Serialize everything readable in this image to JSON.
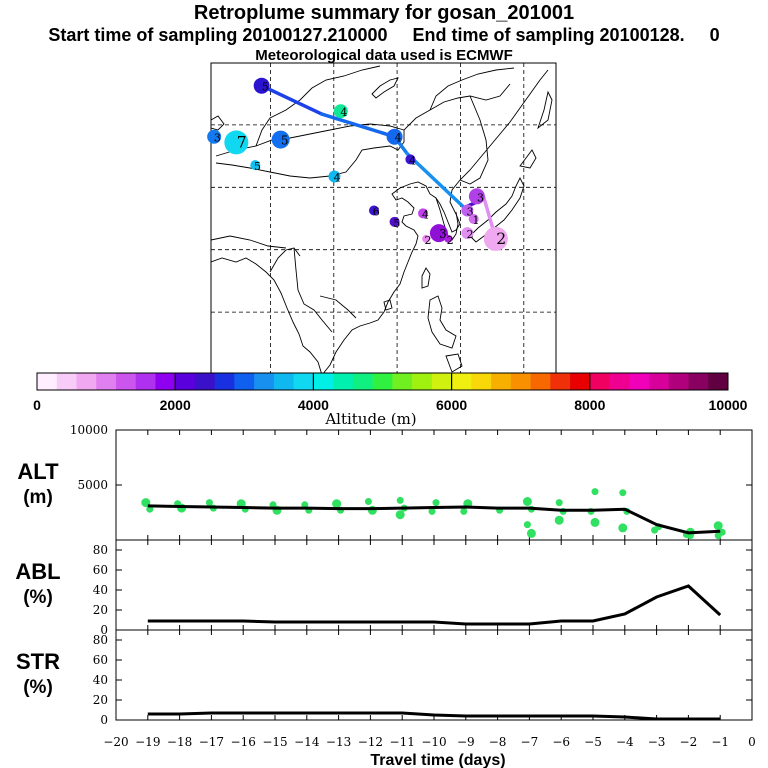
{
  "header": {
    "title": "Retroplume summary for gosan_201001",
    "sampling_line": "Start time of sampling 20100127.210000     End time of sampling 20100128.     0",
    "met_line": "Meteorological data used is ECMWF"
  },
  "colorbar": {
    "label": "Altitude  (m)",
    "ticks": [
      "0",
      "2000",
      "4000",
      "6000",
      "8000",
      "10000"
    ],
    "colors": [
      "#ffeeff",
      "#f8ccf8",
      "#f0a8f0",
      "#e080f0",
      "#cc55ee",
      "#b030f0",
      "#9000f0",
      "#5a00dd",
      "#3a10c8",
      "#1830e0",
      "#1060f0",
      "#1890f0",
      "#10b8f0",
      "#10d8f0",
      "#00f0e8",
      "#00f0b0",
      "#10f080",
      "#30f040",
      "#70f020",
      "#a0f010",
      "#d0f010",
      "#f0f010",
      "#f8d808",
      "#f8b000",
      "#f89000",
      "#f86800",
      "#f03008",
      "#e80000",
      "#f00060",
      "#f00090",
      "#f000b8",
      "#d8009a",
      "#b0007c",
      "#880060",
      "#600040"
    ]
  },
  "map": {
    "labels": [
      {
        "text": "5",
        "color": "#2a14d0",
        "size": 8,
        "lon": 56,
        "lat": 53
      },
      {
        "text": "4",
        "color": "#10e898",
        "size": 7,
        "lon": 81,
        "lat": 48.5
      },
      {
        "text": "3",
        "color": "#1478ee",
        "size": 7,
        "lon": 41,
        "lat": 44
      },
      {
        "text": "7",
        "color": "#10d8f0",
        "size": 12,
        "lon": 48,
        "lat": 43
      },
      {
        "text": "5",
        "color": "#1470ee",
        "size": 9,
        "lon": 62,
        "lat": 43.5
      },
      {
        "text": "4",
        "color": "#1468ee",
        "size": 8,
        "lon": 98,
        "lat": 44
      },
      {
        "text": "5",
        "color": "#10c0f0",
        "size": 5,
        "lon": 54,
        "lat": 39
      },
      {
        "text": "4",
        "color": "#10b8f0",
        "size": 6,
        "lon": 79,
        "lat": 37
      },
      {
        "text": "4",
        "color": "#3a14d0",
        "size": 5,
        "lon": 103,
        "lat": 40
      },
      {
        "text": "6",
        "color": "#3a14d0",
        "size": 5,
        "lon": 91.5,
        "lat": 31
      },
      {
        "text": "5",
        "color": "#5010c8",
        "size": 5,
        "lon": 98,
        "lat": 29
      },
      {
        "text": "4",
        "color": "#c040ec",
        "size": 5,
        "lon": 107,
        "lat": 30.5
      },
      {
        "text": "3",
        "color": "#9010d8",
        "size": 9,
        "lon": 112,
        "lat": 27
      },
      {
        "text": "2",
        "color": "#e888f0",
        "size": 4,
        "lon": 108,
        "lat": 26
      },
      {
        "text": "2",
        "color": "#b020e0",
        "size": 4,
        "lon": 115,
        "lat": 26
      },
      {
        "text": "3",
        "color": "#b040e8",
        "size": 8,
        "lon": 124,
        "lat": 33.5
      },
      {
        "text": "3",
        "color": "#c060ee",
        "size": 6,
        "lon": 121,
        "lat": 31
      },
      {
        "text": "2",
        "color": "#e090f0",
        "size": 6,
        "lon": 121,
        "lat": 27
      },
      {
        "text": "2",
        "color": "#f0a8f0",
        "size": 12,
        "lon": 130,
        "lat": 26
      },
      {
        "text": "1",
        "color": "#d070ee",
        "size": 5,
        "lon": 123,
        "lat": 29.5
      }
    ],
    "mean_path": [
      {
        "lon": 56,
        "lat": 53,
        "color": "#2a18d8"
      },
      {
        "lon": 75,
        "lat": 48,
        "color": "#1e40e8"
      },
      {
        "lon": 98,
        "lat": 44,
        "color": "#1468ee"
      },
      {
        "lon": 102,
        "lat": 41,
        "color": "#1480ee"
      },
      {
        "lon": 120,
        "lat": 31.5,
        "color": "#1890f0"
      },
      {
        "lon": 124,
        "lat": 32.5,
        "color": "#5010c8"
      },
      {
        "lon": 126.2,
        "lat": 33.3,
        "color": "#b040e8"
      },
      {
        "lon": 130,
        "lat": 26,
        "color": "#e090f0"
      }
    ]
  },
  "chart_data": [
    {
      "type": "scatter+line",
      "title": "ALT",
      "ylabel": "ALT\n(m)",
      "ylim": [
        0,
        10000
      ],
      "yticks": [
        5000,
        10000
      ],
      "xlim": [
        -20,
        0
      ],
      "series": [
        {
          "name": "mean altitude",
          "x": [
            -19,
            -18,
            -17,
            -16,
            -15,
            -14,
            -13,
            -12,
            -11,
            -10,
            -9,
            -8,
            -7,
            -6,
            -5,
            -4,
            -3,
            -2,
            -1
          ],
          "values": [
            3100,
            3050,
            3000,
            2950,
            2900,
            2900,
            2850,
            2850,
            2900,
            2950,
            3000,
            2900,
            2900,
            2700,
            2700,
            2800,
            1400,
            650,
            800
          ]
        },
        {
          "name": "clusters",
          "x": [
            -19,
            -19,
            -18,
            -18,
            -17,
            -17,
            -16,
            -16,
            -15,
            -15,
            -14,
            -14,
            -13,
            -13,
            -12,
            -12,
            -11,
            -11,
            -11,
            -10,
            -10,
            -9,
            -9,
            -8,
            -7,
            -7,
            -7,
            -7,
            -6,
            -6,
            -6,
            -5,
            -5,
            -5,
            -4,
            -4,
            -4,
            -3,
            -3,
            -2,
            -2,
            -2,
            -1,
            -1,
            -1
          ],
          "values": [
            3400,
            2800,
            3300,
            2900,
            3400,
            2900,
            3300,
            2800,
            3200,
            2700,
            3200,
            2700,
            3300,
            2700,
            3500,
            2700,
            3600,
            2900,
            2300,
            3400,
            2600,
            3300,
            2600,
            2700,
            3500,
            2800,
            1400,
            600,
            3400,
            2600,
            1800,
            4400,
            2600,
            1600,
            4300,
            2600,
            1100,
            1200,
            900,
            700,
            500,
            400,
            1300,
            700,
            400
          ]
        }
      ]
    },
    {
      "type": "line",
      "title": "ABL",
      "ylabel": "ABL\n(%)",
      "ylim": [
        0,
        90
      ],
      "yticks": [
        0,
        20,
        40,
        60,
        80
      ],
      "xlim": [
        -20,
        0
      ],
      "x": [
        -19,
        -18,
        -17,
        -16,
        -15,
        -14,
        -13,
        -12,
        -11,
        -10,
        -9,
        -8,
        -7,
        -6,
        -5,
        -4,
        -3,
        -2,
        -1
      ],
      "values": [
        9,
        9,
        9,
        9,
        8,
        8,
        8,
        8,
        8,
        8,
        6,
        6,
        6,
        9,
        9,
        16,
        33,
        44,
        15
      ]
    },
    {
      "type": "line",
      "title": "STR",
      "ylabel": "STR\n(%)",
      "ylim": [
        0,
        90
      ],
      "yticks": [
        0,
        20,
        40,
        60,
        80
      ],
      "xlim": [
        -20,
        0
      ],
      "x": [
        -19,
        -18,
        -17,
        -16,
        -15,
        -14,
        -13,
        -12,
        -11,
        -10,
        -9,
        -8,
        -7,
        -6,
        -5,
        -4,
        -3,
        -2,
        -1
      ],
      "values": [
        6,
        6,
        7,
        7,
        7,
        7,
        7,
        7,
        7,
        5,
        4,
        4,
        4,
        4,
        4,
        3,
        1,
        1,
        1
      ]
    }
  ],
  "xaxis": {
    "label": "Travel time (days)",
    "ticks": [
      -20,
      -19,
      -18,
      -17,
      -16,
      -15,
      -14,
      -13,
      -12,
      -11,
      -10,
      -9,
      -8,
      -7,
      -6,
      -5,
      -4,
      -3,
      -2,
      -1,
      0
    ]
  }
}
